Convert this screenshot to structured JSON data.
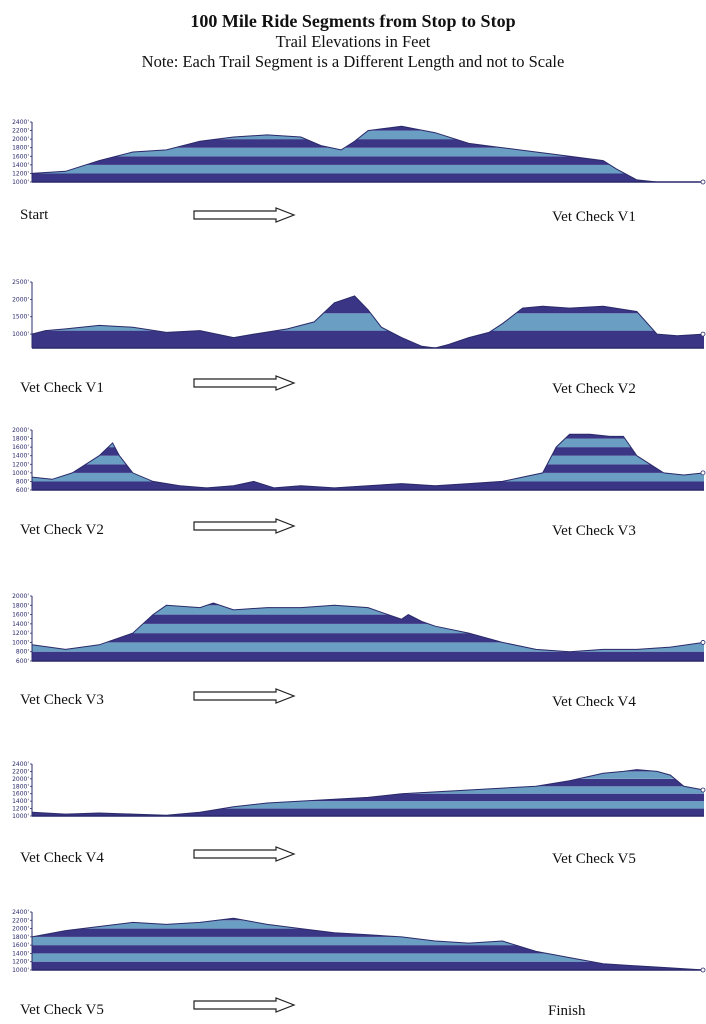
{
  "header": {
    "title": "100 Mile Ride Segments from Stop to Stop",
    "subtitle": "Trail Elevations in Feet",
    "note": "Note: Each Trail Segment is a Different Length and not to Scale"
  },
  "colors": {
    "dark_band": "#3b3585",
    "light_band": "#6a9ec2",
    "axis": "#2a2a6a",
    "arrow_stroke": "#222222"
  },
  "chart_data": [
    {
      "type": "area",
      "from": "Start",
      "to": "Vet Check V1",
      "ylim": [
        1000,
        2400
      ],
      "yticks": [
        "2400'",
        "2200'",
        "2000'",
        "1800'",
        "1600'",
        "1400'",
        "1200'",
        "1000'"
      ],
      "band": 200,
      "x": [
        0,
        0.05,
        0.1,
        0.15,
        0.2,
        0.25,
        0.3,
        0.35,
        0.4,
        0.43,
        0.46,
        0.48,
        0.5,
        0.55,
        0.6,
        0.65,
        0.7,
        0.75,
        0.8,
        0.85,
        0.87,
        0.9,
        0.93,
        1.0
      ],
      "y": [
        1200,
        1250,
        1500,
        1700,
        1750,
        1950,
        2050,
        2100,
        2050,
        1850,
        1750,
        1950,
        2200,
        2300,
        2150,
        1900,
        1800,
        1700,
        1600,
        1500,
        1300,
        1050,
        1000,
        1000
      ]
    },
    {
      "type": "area",
      "from": "Vet Check V1",
      "to": "Vet Check V2",
      "ylim": [
        600,
        2500
      ],
      "yticks": [
        "2500'",
        "2000'",
        "1500'",
        "1000'"
      ],
      "band": 500,
      "x": [
        0,
        0.02,
        0.05,
        0.1,
        0.15,
        0.2,
        0.25,
        0.3,
        0.33,
        0.38,
        0.42,
        0.45,
        0.48,
        0.5,
        0.52,
        0.55,
        0.58,
        0.6,
        0.62,
        0.65,
        0.68,
        0.7,
        0.73,
        0.76,
        0.8,
        0.85,
        0.9,
        0.93,
        0.96,
        1.0
      ],
      "y": [
        1000,
        1100,
        1150,
        1250,
        1200,
        1050,
        1100,
        900,
        1000,
        1150,
        1350,
        1900,
        2100,
        1700,
        1200,
        900,
        650,
        600,
        700,
        900,
        1050,
        1300,
        1750,
        1800,
        1750,
        1800,
        1650,
        1000,
        950,
        1000
      ]
    },
    {
      "type": "area",
      "from": "Vet Check V2",
      "to": "Vet Check V3",
      "ylim": [
        600,
        2000
      ],
      "yticks": [
        "2000'",
        "1800'",
        "1600'",
        "1400'",
        "1200'",
        "1000'",
        "800'",
        "600'"
      ],
      "band": 200,
      "x": [
        0,
        0.03,
        0.06,
        0.1,
        0.12,
        0.13,
        0.15,
        0.18,
        0.22,
        0.26,
        0.3,
        0.33,
        0.36,
        0.4,
        0.45,
        0.5,
        0.55,
        0.6,
        0.65,
        0.7,
        0.73,
        0.76,
        0.78,
        0.8,
        0.83,
        0.86,
        0.88,
        0.9,
        0.94,
        0.97,
        1.0
      ],
      "y": [
        900,
        850,
        1000,
        1400,
        1700,
        1400,
        1000,
        800,
        700,
        650,
        700,
        800,
        650,
        700,
        650,
        700,
        750,
        700,
        750,
        800,
        900,
        1000,
        1600,
        1900,
        1900,
        1850,
        1850,
        1400,
        1000,
        950,
        1000
      ]
    },
    {
      "type": "area",
      "from": "Vet Check V3",
      "to": "Vet Check V4",
      "ylim": [
        600,
        2000
      ],
      "yticks": [
        "2000'",
        "1800'",
        "1600'",
        "1400'",
        "1200'",
        "1000'",
        "800'",
        "600'"
      ],
      "band": 200,
      "x": [
        0,
        0.05,
        0.1,
        0.15,
        0.18,
        0.2,
        0.25,
        0.27,
        0.3,
        0.35,
        0.4,
        0.45,
        0.5,
        0.52,
        0.55,
        0.56,
        0.58,
        0.6,
        0.65,
        0.7,
        0.75,
        0.8,
        0.85,
        0.9,
        0.95,
        1.0
      ],
      "y": [
        950,
        850,
        950,
        1200,
        1600,
        1800,
        1750,
        1850,
        1700,
        1750,
        1750,
        1800,
        1750,
        1650,
        1500,
        1600,
        1450,
        1350,
        1200,
        1000,
        850,
        800,
        850,
        850,
        900,
        1000
      ]
    },
    {
      "type": "area",
      "from": "Vet Check V4",
      "to": "Vet Check V5",
      "ylim": [
        1000,
        2400
      ],
      "yticks": [
        "2400'",
        "2200'",
        "2000'",
        "1800'",
        "1600'",
        "1400'",
        "1200'",
        "1000'"
      ],
      "band": 200,
      "x": [
        0,
        0.05,
        0.1,
        0.15,
        0.2,
        0.25,
        0.3,
        0.35,
        0.4,
        0.45,
        0.5,
        0.55,
        0.6,
        0.65,
        0.7,
        0.75,
        0.8,
        0.85,
        0.88,
        0.9,
        0.93,
        0.95,
        0.97,
        1.0
      ],
      "y": [
        1100,
        1050,
        1080,
        1050,
        1020,
        1100,
        1250,
        1350,
        1400,
        1450,
        1500,
        1600,
        1650,
        1700,
        1750,
        1800,
        1950,
        2150,
        2200,
        2250,
        2200,
        2100,
        1800,
        1700
      ]
    },
    {
      "type": "area",
      "from": "Vet Check V5",
      "to": "Finish",
      "ylim": [
        1000,
        2400
      ],
      "yticks": [
        "2400'",
        "2200'",
        "2000'",
        "1800'",
        "1600'",
        "1400'",
        "1200'",
        "1000'"
      ],
      "band": 200,
      "x": [
        0,
        0.05,
        0.1,
        0.15,
        0.2,
        0.25,
        0.3,
        0.35,
        0.4,
        0.45,
        0.5,
        0.55,
        0.6,
        0.65,
        0.7,
        0.75,
        0.8,
        0.85,
        0.9,
        0.95,
        1.0
      ],
      "y": [
        1800,
        1950,
        2050,
        2150,
        2100,
        2150,
        2250,
        2100,
        2000,
        1900,
        1850,
        1800,
        1700,
        1650,
        1700,
        1450,
        1300,
        1150,
        1100,
        1050,
        1000
      ]
    }
  ]
}
